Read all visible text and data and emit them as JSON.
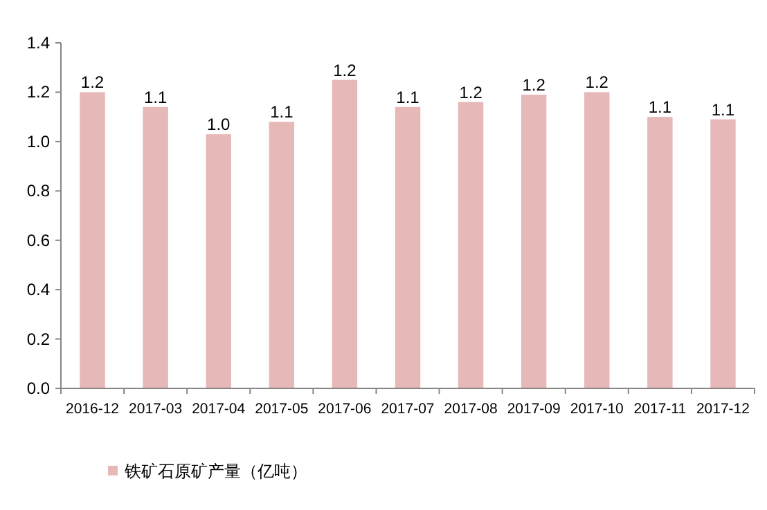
{
  "chart_data": {
    "type": "bar",
    "categories": [
      "2016-12",
      "2017-03",
      "2017-04",
      "2017-05",
      "2017-06",
      "2017-07",
      "2017-08",
      "2017-09",
      "2017-10",
      "2017-11",
      "2017-12"
    ],
    "series": [
      {
        "name": "铁矿石原矿产量（亿吨）",
        "color": "#e6b8b7",
        "values": [
          1.2,
          1.14,
          1.03,
          1.08,
          1.25,
          1.14,
          1.16,
          1.19,
          1.2,
          1.1,
          1.09
        ],
        "value_labels": [
          "1.2",
          "1.1",
          "1.0",
          "1.1",
          "1.2",
          "1.1",
          "1.2",
          "1.2",
          "1.2",
          "1.1",
          "1.1"
        ]
      }
    ],
    "ylim": [
      0,
      1.4
    ],
    "yticks": [
      {
        "value": 0,
        "label": "0.0"
      },
      0.2,
      0.4,
      0.6,
      0.8,
      {
        "value": 1,
        "label": "1.0"
      },
      1.2,
      1.4
    ],
    "grid": false,
    "legend": "bottom left"
  }
}
